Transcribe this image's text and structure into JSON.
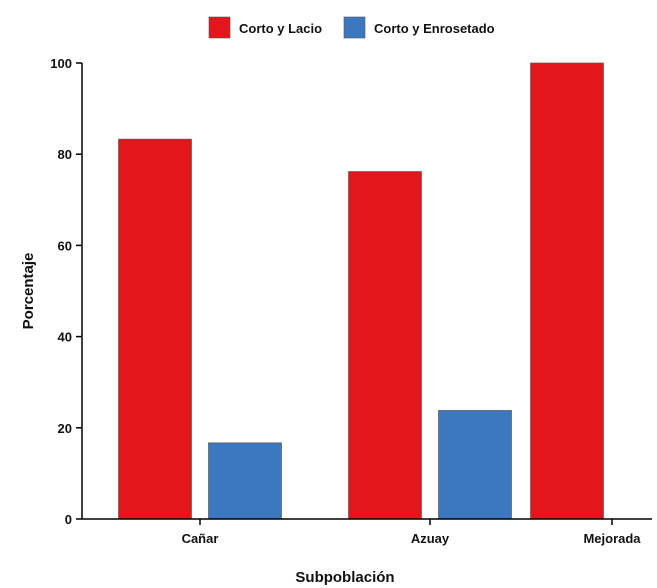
{
  "chart_data": {
    "type": "bar",
    "categories": [
      "Cañar",
      "Azuay",
      "Mejorada"
    ],
    "series": [
      {
        "name": "Corto y Lacio",
        "color": "#e3161b",
        "values": [
          83.3,
          76.2,
          100
        ]
      },
      {
        "name": "Corto y Enrosetado",
        "color": "#3b78bf",
        "values": [
          16.7,
          23.8,
          0
        ]
      }
    ],
    "xlabel": "Subpoblación",
    "ylabel": "Porcentaje",
    "ylim": [
      0,
      100
    ],
    "yticks": [
      0,
      20,
      40,
      60,
      80,
      100
    ],
    "grid": false,
    "legend": "top-center"
  }
}
